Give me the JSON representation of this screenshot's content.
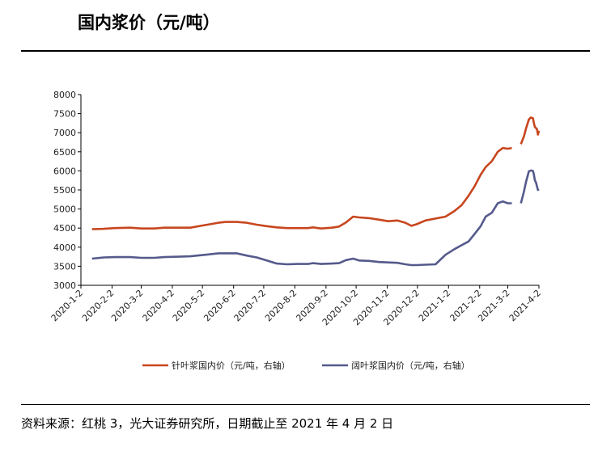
{
  "header": {
    "title": "国内浆价（元/吨）"
  },
  "footer": {
    "source": "资料来源：红桃 3，光大证券研究所，日期截止至 2021 年 4 月 2 日"
  },
  "colors": {
    "softwood": "#C8461E",
    "hardwood": "#555A8C",
    "axis": "#000000"
  },
  "chart_data": {
    "type": "line",
    "title": "国内浆价（元/吨）",
    "ylim": [
      3000,
      8000
    ],
    "yticks": [
      3000,
      3500,
      4000,
      4500,
      5000,
      5500,
      6000,
      6500,
      7000,
      7500,
      8000
    ],
    "x_range": [
      "2020-01-02",
      "2021-04-02"
    ],
    "xticks": [
      "2020-1-2",
      "2020-2-2",
      "2020-3-2",
      "2020-4-2",
      "2020-5-2",
      "2020-6-2",
      "2020-7-2",
      "2020-8-2",
      "2020-9-2",
      "2020-10-2",
      "2020-11-2",
      "2020-12-2",
      "2021-1-2",
      "2021-2-2",
      "2021-3-2",
      "2021-4-2"
    ],
    "grid": false,
    "legend_position": "bottom",
    "series": [
      {
        "name": "针叶浆国内价（元/吨，右轴）",
        "color": "#C8461E",
        "points": [
          [
            "2020-01-13",
            4470
          ],
          [
            "2020-01-25",
            4480
          ],
          [
            "2020-02-05",
            4500
          ],
          [
            "2020-02-20",
            4510
          ],
          [
            "2020-03-02",
            4490
          ],
          [
            "2020-03-15",
            4490
          ],
          [
            "2020-03-25",
            4510
          ],
          [
            "2020-04-08",
            4510
          ],
          [
            "2020-04-20",
            4510
          ],
          [
            "2020-05-05",
            4580
          ],
          [
            "2020-05-18",
            4640
          ],
          [
            "2020-05-25",
            4660
          ],
          [
            "2020-06-05",
            4660
          ],
          [
            "2020-06-15",
            4640
          ],
          [
            "2020-06-25",
            4590
          ],
          [
            "2020-07-05",
            4550
          ],
          [
            "2020-07-15",
            4520
          ],
          [
            "2020-07-25",
            4500
          ],
          [
            "2020-08-05",
            4500
          ],
          [
            "2020-08-15",
            4500
          ],
          [
            "2020-08-20",
            4520
          ],
          [
            "2020-08-28",
            4490
          ],
          [
            "2020-09-08",
            4510
          ],
          [
            "2020-09-15",
            4540
          ],
          [
            "2020-09-22",
            4650
          ],
          [
            "2020-09-29",
            4800
          ],
          [
            "2020-10-05",
            4780
          ],
          [
            "2020-10-15",
            4760
          ],
          [
            "2020-10-25",
            4720
          ],
          [
            "2020-11-03",
            4680
          ],
          [
            "2020-11-12",
            4700
          ],
          [
            "2020-11-20",
            4640
          ],
          [
            "2020-11-26",
            4560
          ],
          [
            "2020-12-01",
            4600
          ],
          [
            "2020-12-10",
            4700
          ],
          [
            "2020-12-20",
            4750
          ],
          [
            "2020-12-30",
            4800
          ],
          [
            "2021-01-08",
            4950
          ],
          [
            "2021-01-15",
            5100
          ],
          [
            "2021-01-22",
            5350
          ],
          [
            "2021-01-28",
            5600
          ],
          [
            "2021-02-03",
            5900
          ],
          [
            "2021-02-08",
            6100
          ],
          [
            "2021-02-14",
            6250
          ],
          [
            "2021-02-20",
            6500
          ],
          [
            "2021-02-25",
            6600
          ],
          [
            "2021-03-02",
            6580
          ],
          [
            "2021-03-06",
            6600
          ],
          [
            "2021-03-12",
            null
          ],
          [
            "2021-03-15",
            6700
          ],
          [
            "2021-03-18",
            6900
          ],
          [
            "2021-03-20",
            7100
          ],
          [
            "2021-03-23",
            7350
          ],
          [
            "2021-03-25",
            7400
          ],
          [
            "2021-03-27",
            7380
          ],
          [
            "2021-03-28",
            7250
          ],
          [
            "2021-03-29",
            7150
          ],
          [
            "2021-03-30",
            7120
          ],
          [
            "2021-03-31",
            7100
          ],
          [
            "2021-04-01",
            6950
          ],
          [
            "2021-04-02",
            7050
          ]
        ]
      },
      {
        "name": "阔叶浆国内价（元/吨，右轴）",
        "color": "#555A8C",
        "points": [
          [
            "2020-01-13",
            3700
          ],
          [
            "2020-01-25",
            3730
          ],
          [
            "2020-02-05",
            3740
          ],
          [
            "2020-02-20",
            3740
          ],
          [
            "2020-03-02",
            3720
          ],
          [
            "2020-03-15",
            3720
          ],
          [
            "2020-03-25",
            3740
          ],
          [
            "2020-04-08",
            3750
          ],
          [
            "2020-04-20",
            3760
          ],
          [
            "2020-05-05",
            3800
          ],
          [
            "2020-05-18",
            3840
          ],
          [
            "2020-05-25",
            3840
          ],
          [
            "2020-06-05",
            3840
          ],
          [
            "2020-06-15",
            3780
          ],
          [
            "2020-06-25",
            3730
          ],
          [
            "2020-07-05",
            3650
          ],
          [
            "2020-07-15",
            3570
          ],
          [
            "2020-07-25",
            3550
          ],
          [
            "2020-08-05",
            3560
          ],
          [
            "2020-08-15",
            3560
          ],
          [
            "2020-08-20",
            3580
          ],
          [
            "2020-08-28",
            3560
          ],
          [
            "2020-09-08",
            3570
          ],
          [
            "2020-09-15",
            3580
          ],
          [
            "2020-09-22",
            3660
          ],
          [
            "2020-09-29",
            3700
          ],
          [
            "2020-10-05",
            3650
          ],
          [
            "2020-10-15",
            3640
          ],
          [
            "2020-10-25",
            3610
          ],
          [
            "2020-11-03",
            3600
          ],
          [
            "2020-11-12",
            3590
          ],
          [
            "2020-11-20",
            3550
          ],
          [
            "2020-11-26",
            3530
          ],
          [
            "2020-12-01",
            3530
          ],
          [
            "2020-12-10",
            3540
          ],
          [
            "2020-12-20",
            3550
          ],
          [
            "2020-12-30",
            3800
          ],
          [
            "2021-01-08",
            3950
          ],
          [
            "2021-01-15",
            4050
          ],
          [
            "2021-01-22",
            4150
          ],
          [
            "2021-01-28",
            4350
          ],
          [
            "2021-02-03",
            4550
          ],
          [
            "2021-02-08",
            4800
          ],
          [
            "2021-02-14",
            4900
          ],
          [
            "2021-02-20",
            5150
          ],
          [
            "2021-02-25",
            5200
          ],
          [
            "2021-03-02",
            5150
          ],
          [
            "2021-03-06",
            5150
          ],
          [
            "2021-03-12",
            null
          ],
          [
            "2021-03-15",
            5150
          ],
          [
            "2021-03-18",
            5450
          ],
          [
            "2021-03-20",
            5700
          ],
          [
            "2021-03-23",
            5990
          ],
          [
            "2021-03-25",
            6010
          ],
          [
            "2021-03-27",
            6000
          ],
          [
            "2021-03-28",
            5900
          ],
          [
            "2021-03-29",
            5750
          ],
          [
            "2021-03-30",
            5700
          ],
          [
            "2021-03-31",
            5600
          ],
          [
            "2021-04-01",
            5500
          ],
          [
            "2021-04-02",
            5520
          ]
        ]
      }
    ]
  }
}
